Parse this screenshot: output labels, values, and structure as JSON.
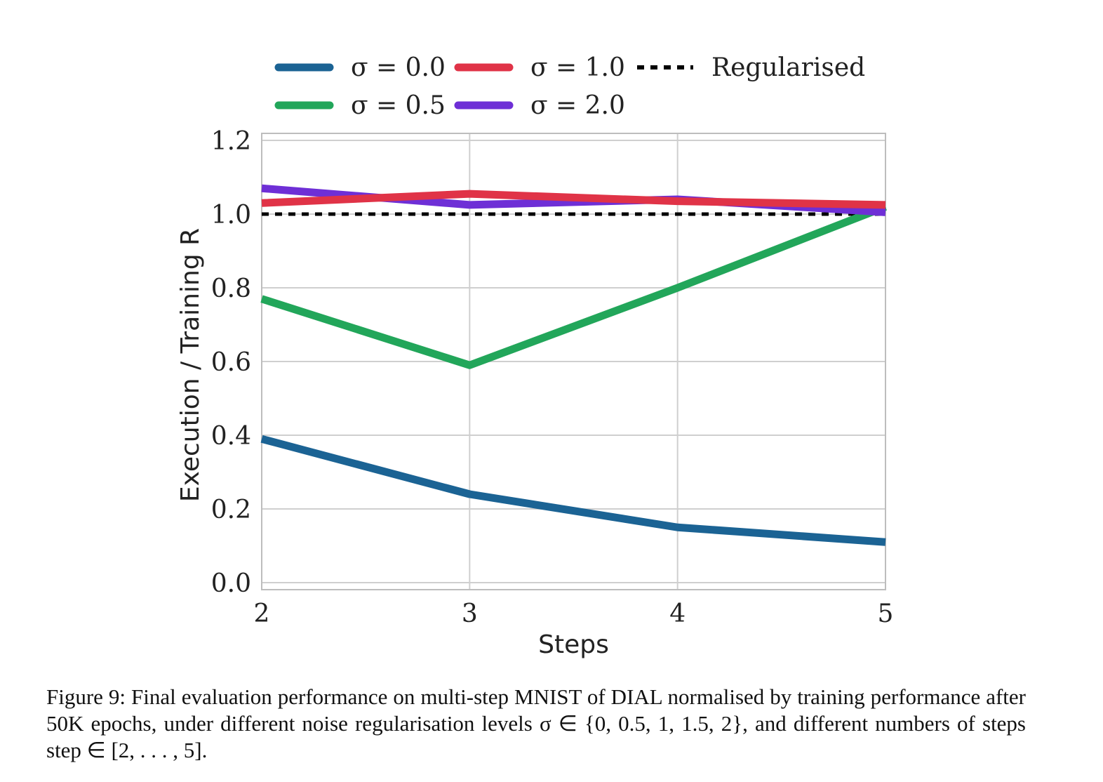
{
  "chart_data": {
    "type": "line",
    "x": [
      2,
      3,
      4,
      5
    ],
    "xlabel": "Steps",
    "ylabel": "Execution / Training R",
    "xlim": [
      2,
      5
    ],
    "ylim": [
      0.0,
      1.2
    ],
    "xticks": [
      "2",
      "3",
      "4",
      "5"
    ],
    "yticks": [
      "0.0",
      "0.2",
      "0.4",
      "0.6",
      "0.8",
      "1.0",
      "1.2"
    ],
    "grid": true,
    "legend_position": "top",
    "series": [
      {
        "name": "σ = 0.0",
        "color": "#1b6394",
        "values": [
          0.39,
          0.24,
          0.15,
          0.11
        ]
      },
      {
        "name": "σ = 0.5",
        "color": "#22a65a",
        "values": [
          0.77,
          0.59,
          0.8,
          1.02
        ]
      },
      {
        "name": "σ = 1.0",
        "color": "#e03347",
        "values": [
          1.03,
          1.055,
          1.035,
          1.025
        ]
      },
      {
        "name": "σ = 2.0",
        "color": "#6e2fd6",
        "values": [
          1.07,
          1.025,
          1.04,
          1.005
        ]
      },
      {
        "name": "Regularised",
        "color": "#000000",
        "style": "dashed",
        "values": [
          1.0,
          1.0,
          1.0,
          1.0
        ]
      }
    ]
  },
  "caption": "Figure 9: Final evaluation performance on multi-step MNIST of DIAL normalised by training performance after 50K epochs, under different noise regularisation levels σ ∈ {0, 0.5, 1, 1.5, 2}, and different numbers of steps step ∈ [2, . . . , 5]."
}
